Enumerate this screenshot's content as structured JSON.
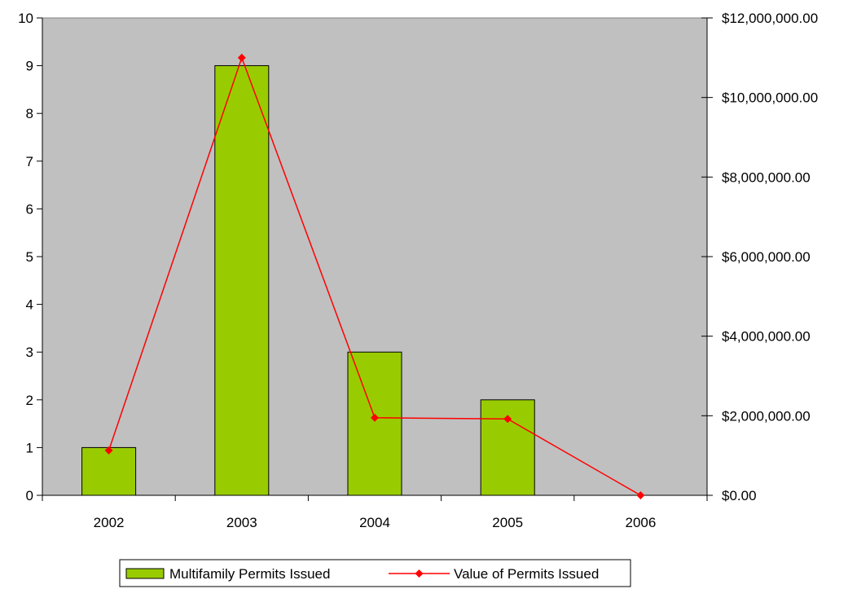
{
  "chart_data": {
    "type": "bar",
    "title": "",
    "xlabel": "",
    "ylabel": "",
    "categories": [
      "2002",
      "2003",
      "2004",
      "2005",
      "2006"
    ],
    "series": [
      {
        "name": "Multifamily Permits Issued",
        "type": "bar",
        "axis": "left",
        "color": "#99CC00",
        "values": [
          1,
          9,
          3,
          2,
          0
        ]
      },
      {
        "name": "Value of Permits Issued",
        "type": "line",
        "axis": "right",
        "color": "#FF0000",
        "marker": "diamond",
        "values": [
          1130000,
          11000000,
          1950000,
          1920000,
          0
        ]
      }
    ],
    "ylim_left": [
      0,
      10
    ],
    "yticks_left": [
      "0",
      "1",
      "2",
      "3",
      "4",
      "5",
      "6",
      "7",
      "8",
      "9",
      "10"
    ],
    "ylim_right": [
      0,
      12000000
    ],
    "yticks_right": [
      "$0.00",
      "$2,000,000.00",
      "$4,000,000.00",
      "$6,000,000.00",
      "$8,000,000.00",
      "$10,000,000.00",
      "$12,000,000.00"
    ],
    "plot_background": "#C0C0C0",
    "grid": false,
    "legend_position": "bottom"
  }
}
